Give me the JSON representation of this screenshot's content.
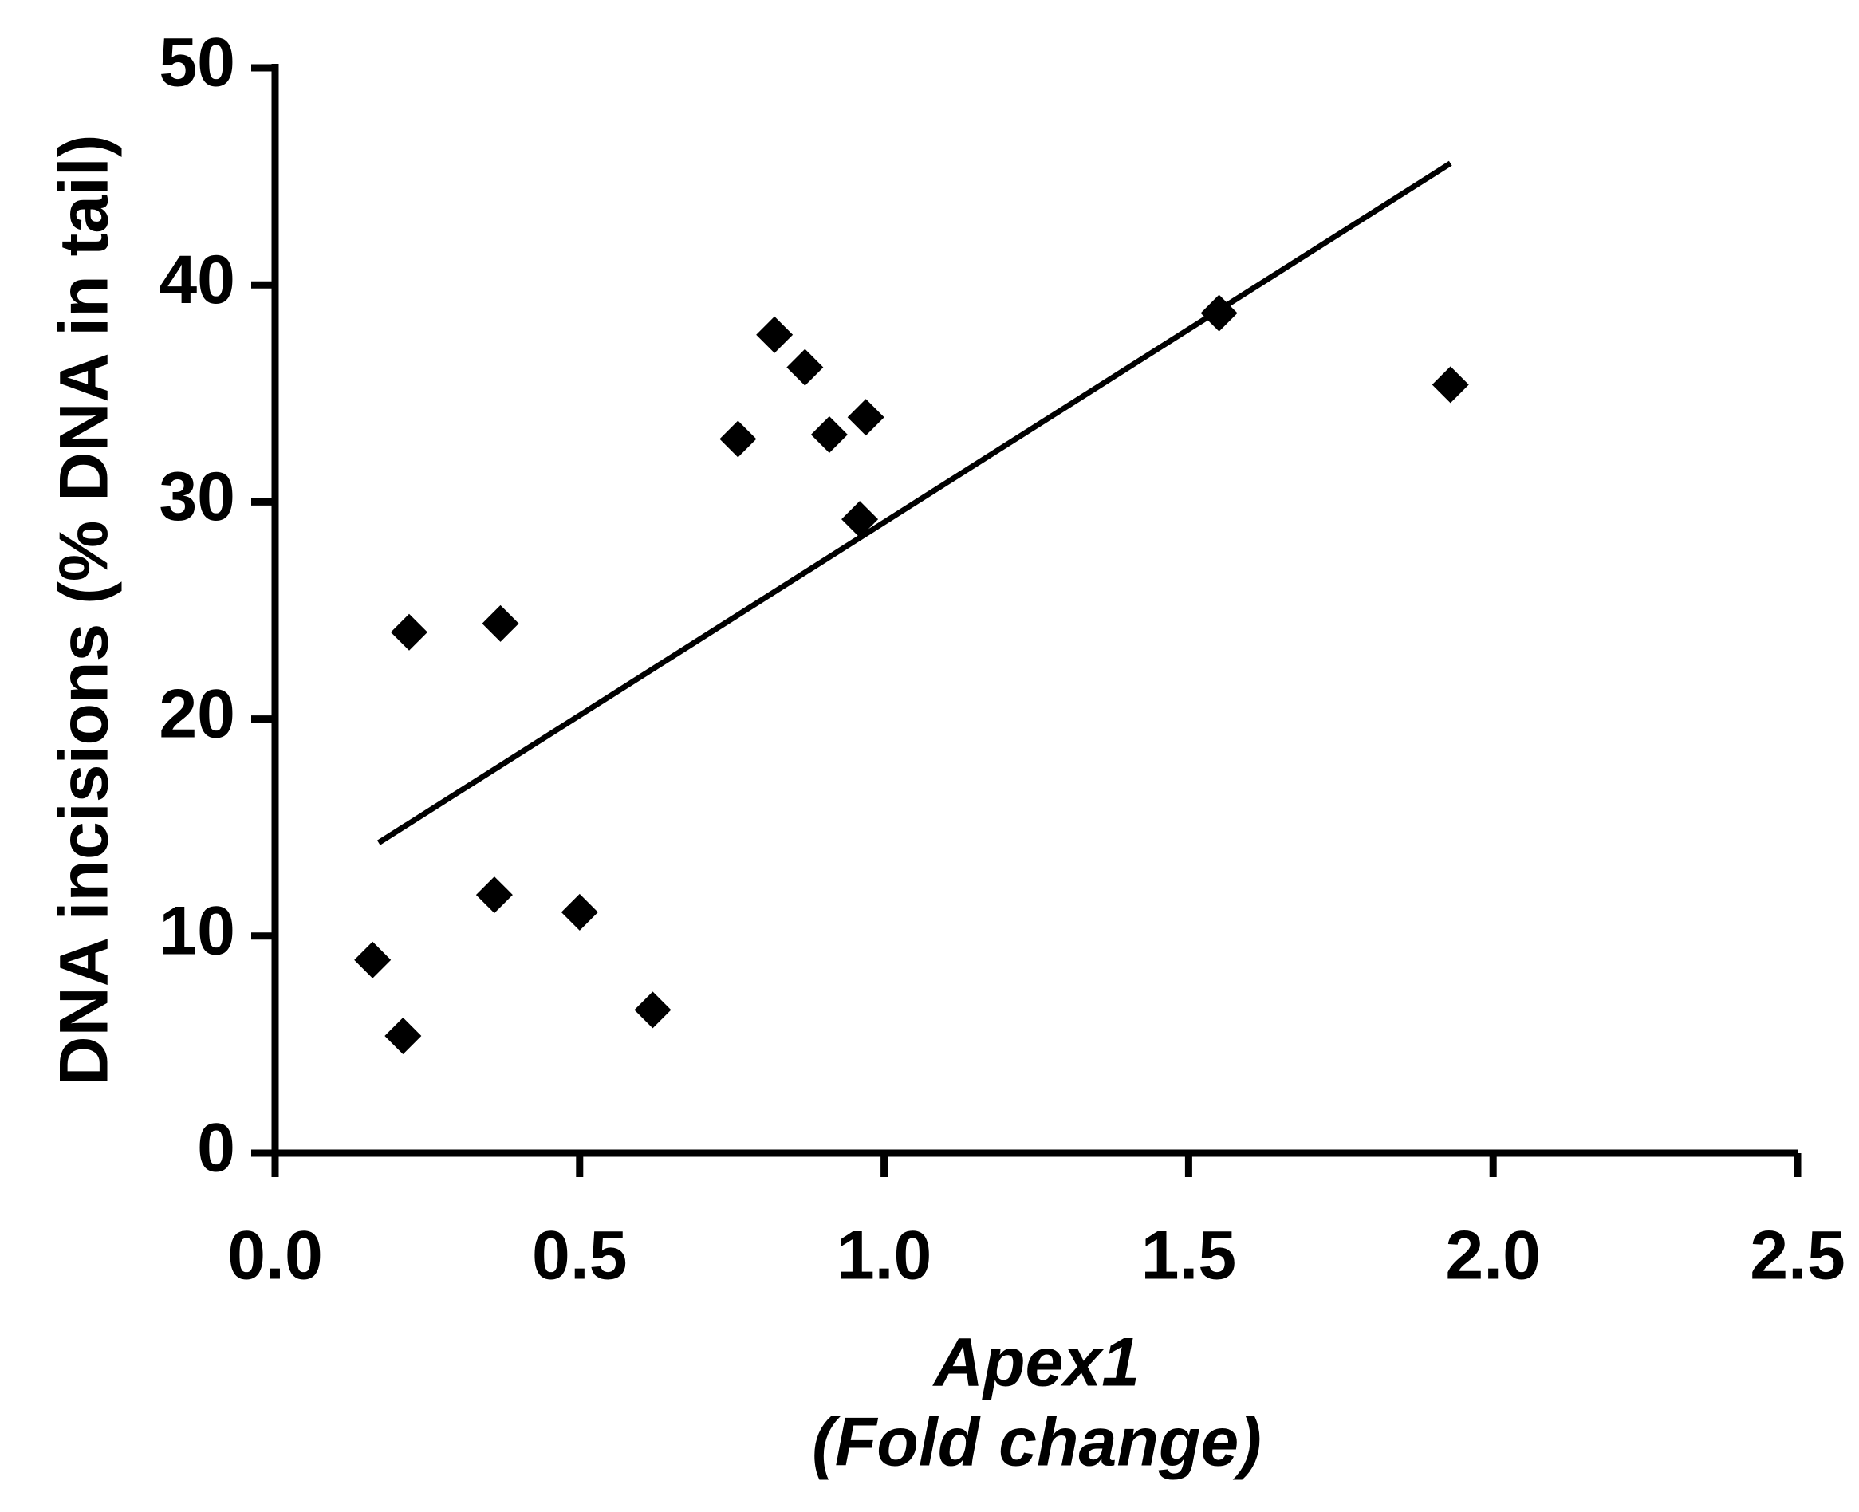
{
  "chart_data": {
    "type": "scatter",
    "x_label": [
      "Apex1",
      "(Fold change)"
    ],
    "y_label": "DNA incisions (% DNA in tail)",
    "x": [
      0.16,
      0.21,
      0.22,
      0.36,
      0.37,
      0.5,
      0.62,
      0.76,
      0.82,
      0.87,
      0.91,
      0.97,
      0.96,
      1.55,
      1.93
    ],
    "y": [
      8.9,
      5.4,
      24.0,
      11.9,
      24.4,
      11.1,
      6.6,
      32.9,
      37.7,
      36.2,
      33.1,
      33.9,
      29.2,
      38.7,
      35.4
    ],
    "color": "#000000",
    "fit": {
      "x": [
        0.17,
        1.93
      ],
      "y": [
        14.3,
        45.6
      ]
    },
    "xlim": [
      0,
      2.5
    ],
    "xticks": [
      {
        "value": 0,
        "label": "0.0"
      },
      0.5,
      {
        "value": 1,
        "label": "1.0"
      },
      1.5,
      {
        "value": 2,
        "label": "2.0"
      },
      2.5
    ],
    "ylim": [
      0,
      50
    ],
    "yticks": [
      0,
      10,
      20,
      30,
      40,
      50
    ]
  }
}
